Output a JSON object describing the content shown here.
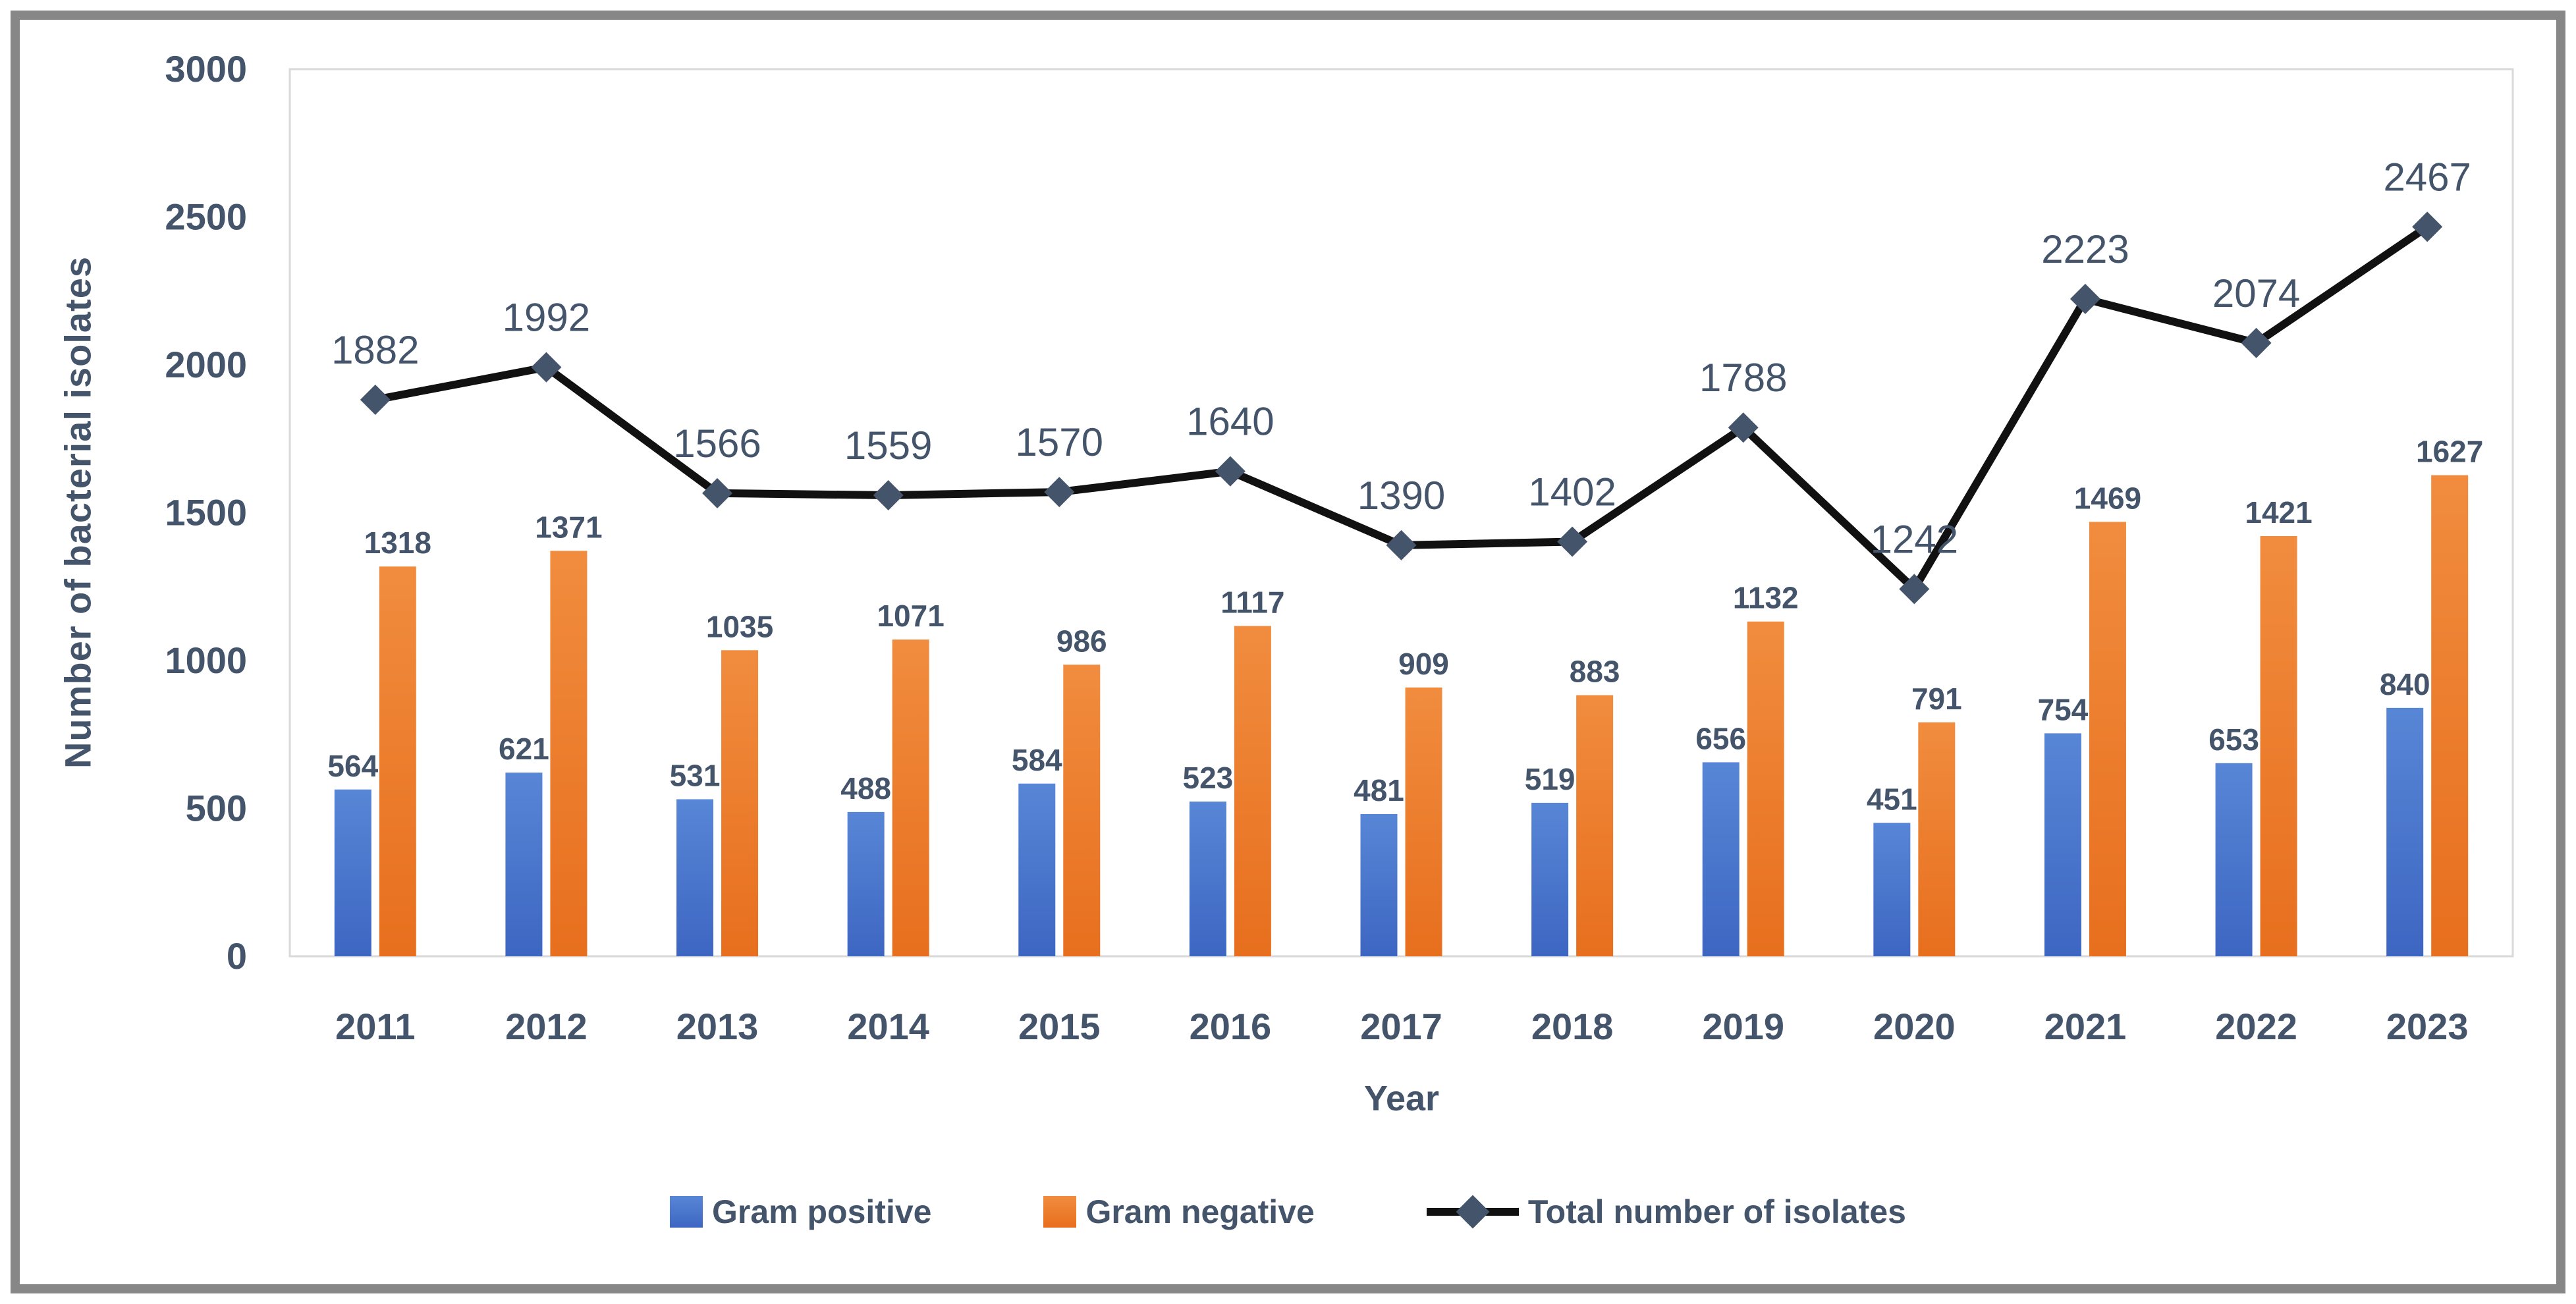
{
  "figure": {
    "y_axis_title": "Number of bacterial isolates",
    "x_axis_title": "Year"
  },
  "colors": {
    "text": "#44546A",
    "bar_blue_top": "#5886D6",
    "bar_blue_bottom": "#3D66C2",
    "bar_orange_top": "#F18C3E",
    "bar_orange_bottom": "#E76F1E",
    "line": "#111111",
    "marker": "#44546A",
    "plot_border": "#D9D9D9",
    "outer_frame": "#878787"
  },
  "chart_data": {
    "type": "bar",
    "subtype": "grouped-bars-with-line-overlay",
    "categories": [
      "2011",
      "2012",
      "2013",
      "2014",
      "2015",
      "2016",
      "2017",
      "2018",
      "2019",
      "2020",
      "2021",
      "2022",
      "2023"
    ],
    "series": [
      {
        "name": "Gram positive",
        "type": "bar",
        "values": [
          564,
          621,
          531,
          488,
          584,
          523,
          481,
          519,
          656,
          451,
          754,
          653,
          840
        ]
      },
      {
        "name": "Gram negative",
        "type": "bar",
        "values": [
          1318,
          1371,
          1035,
          1071,
          986,
          1117,
          909,
          883,
          1132,
          791,
          1469,
          1421,
          1627
        ]
      },
      {
        "name": "Total number of isolates",
        "type": "line",
        "values": [
          1882,
          1992,
          1566,
          1559,
          1570,
          1640,
          1390,
          1402,
          1788,
          1242,
          2223,
          2074,
          2467
        ]
      }
    ],
    "title": "",
    "xlabel": "Year",
    "ylabel": "Number of bacterial isolates",
    "ylim": [
      0,
      3000
    ],
    "ytick_step": 500,
    "yticks": [
      0,
      500,
      1000,
      1500,
      2000,
      2500,
      3000
    ],
    "grid": false,
    "data_labels": true,
    "legend_position": "bottom"
  }
}
